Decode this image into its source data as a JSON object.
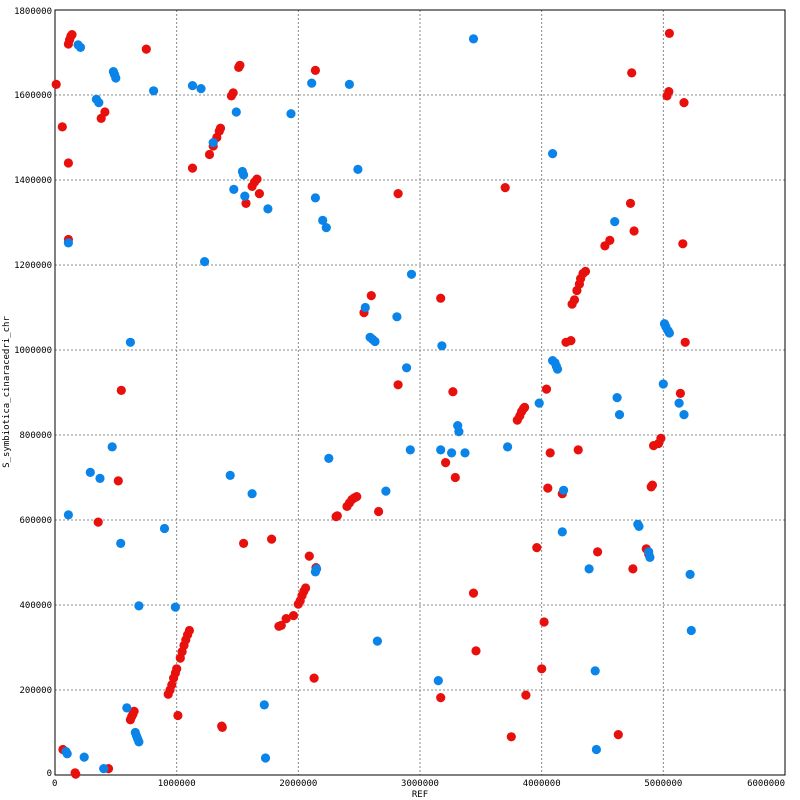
{
  "chart_data": {
    "type": "scatter",
    "title": "",
    "xlabel": "REF",
    "ylabel": "S_symbiotica_cinaracedri_chr",
    "xlim": [
      0,
      6000000
    ],
    "ylim": [
      0,
      1800000
    ],
    "grid": true,
    "x_ticks": [
      "0",
      "1000000",
      "2000000",
      "3000000",
      "4000000",
      "5000000",
      "6000000"
    ],
    "y_ticks": [
      "0",
      "200000",
      "400000",
      "600000",
      "800000",
      "1000000",
      "1200000",
      "1400000",
      "1600000",
      "1800000"
    ],
    "series": [
      {
        "color": "#e8100c",
        "points": [
          [
            10000,
            1625000
          ],
          [
            60000,
            1525000
          ],
          [
            110000,
            1720000
          ],
          [
            120000,
            1730000
          ],
          [
            130000,
            1738000
          ],
          [
            140000,
            1742000
          ],
          [
            110000,
            1440000
          ],
          [
            110000,
            1260000
          ],
          [
            65000,
            60000
          ],
          [
            165000,
            5000
          ],
          [
            170000,
            2000
          ],
          [
            440000,
            15000
          ],
          [
            380000,
            1545000
          ],
          [
            410000,
            1560000
          ],
          [
            355000,
            595000
          ],
          [
            520000,
            692000
          ],
          [
            545000,
            905000
          ],
          [
            750000,
            1708000
          ],
          [
            620000,
            130000
          ],
          [
            630000,
            137000
          ],
          [
            640000,
            143000
          ],
          [
            650000,
            150000
          ],
          [
            930000,
            190000
          ],
          [
            945000,
            200000
          ],
          [
            960000,
            212000
          ],
          [
            975000,
            228000
          ],
          [
            990000,
            240000
          ],
          [
            1000000,
            250000
          ],
          [
            1010000,
            140000
          ],
          [
            1030000,
            275000
          ],
          [
            1045000,
            290000
          ],
          [
            1060000,
            305000
          ],
          [
            1075000,
            318000
          ],
          [
            1090000,
            330000
          ],
          [
            1105000,
            340000
          ],
          [
            1130000,
            1428000
          ],
          [
            1270000,
            1460000
          ],
          [
            1300000,
            1480000
          ],
          [
            1330000,
            1500000
          ],
          [
            1350000,
            1515000
          ],
          [
            1360000,
            1522000
          ],
          [
            1370000,
            115000
          ],
          [
            1375000,
            112000
          ],
          [
            1450000,
            1598000
          ],
          [
            1465000,
            1605000
          ],
          [
            1510000,
            1665000
          ],
          [
            1520000,
            1670000
          ],
          [
            1550000,
            545000
          ],
          [
            1570000,
            1345000
          ],
          [
            1620000,
            1385000
          ],
          [
            1640000,
            1395000
          ],
          [
            1660000,
            1402000
          ],
          [
            1680000,
            1368000
          ],
          [
            1780000,
            555000
          ],
          [
            1840000,
            350000
          ],
          [
            1860000,
            352000
          ],
          [
            1900000,
            368000
          ],
          [
            1960000,
            375000
          ],
          [
            2000000,
            402000
          ],
          [
            2015000,
            410000
          ],
          [
            2030000,
            422000
          ],
          [
            2045000,
            432000
          ],
          [
            2060000,
            440000
          ],
          [
            2090000,
            515000
          ],
          [
            2130000,
            228000
          ],
          [
            2140000,
            1658000
          ],
          [
            2145000,
            488000
          ],
          [
            2310000,
            608000
          ],
          [
            2320000,
            610000
          ],
          [
            2400000,
            632000
          ],
          [
            2420000,
            640000
          ],
          [
            2440000,
            648000
          ],
          [
            2460000,
            652000
          ],
          [
            2480000,
            655000
          ],
          [
            2540000,
            1088000
          ],
          [
            2600000,
            1128000
          ],
          [
            2660000,
            620000
          ],
          [
            2820000,
            1368000
          ],
          [
            2820000,
            918000
          ],
          [
            3170000,
            1122000
          ],
          [
            3170000,
            182000
          ],
          [
            3210000,
            735000
          ],
          [
            3270000,
            902000
          ],
          [
            3290000,
            700000
          ],
          [
            3440000,
            428000
          ],
          [
            3460000,
            292000
          ],
          [
            3700000,
            1382000
          ],
          [
            3750000,
            90000
          ],
          [
            3800000,
            835000
          ],
          [
            3820000,
            845000
          ],
          [
            3835000,
            855000
          ],
          [
            3850000,
            862000
          ],
          [
            3860000,
            865000
          ],
          [
            3870000,
            188000
          ],
          [
            3960000,
            535000
          ],
          [
            4000000,
            250000
          ],
          [
            4020000,
            360000
          ],
          [
            4040000,
            908000
          ],
          [
            4050000,
            675000
          ],
          [
            4070000,
            758000
          ],
          [
            4170000,
            662000
          ],
          [
            4200000,
            1018000
          ],
          [
            4240000,
            1022000
          ],
          [
            4250000,
            1108000
          ],
          [
            4270000,
            1118000
          ],
          [
            4290000,
            1140000
          ],
          [
            4310000,
            1155000
          ],
          [
            4320000,
            1168000
          ],
          [
            4340000,
            1180000
          ],
          [
            4360000,
            1185000
          ],
          [
            4300000,
            765000
          ],
          [
            4460000,
            525000
          ],
          [
            4520000,
            1245000
          ],
          [
            4560000,
            1258000
          ],
          [
            4630000,
            95000
          ],
          [
            4730000,
            1345000
          ],
          [
            4740000,
            1652000
          ],
          [
            4750000,
            485000
          ],
          [
            4760000,
            1280000
          ],
          [
            4860000,
            532000
          ],
          [
            4880000,
            520000
          ],
          [
            4900000,
            678000
          ],
          [
            4910000,
            682000
          ],
          [
            4920000,
            775000
          ],
          [
            4960000,
            780000
          ],
          [
            4980000,
            792000
          ],
          [
            5030000,
            1598000
          ],
          [
            5045000,
            1608000
          ],
          [
            5050000,
            1745000
          ],
          [
            5140000,
            898000
          ],
          [
            5160000,
            1250000
          ],
          [
            5170000,
            1582000
          ],
          [
            5180000,
            1018000
          ]
        ]
      },
      {
        "color": "#0a84e8",
        "points": [
          [
            90000,
            55000
          ],
          [
            100000,
            50000
          ],
          [
            110000,
            612000
          ],
          [
            110000,
            1252000
          ],
          [
            190000,
            1718000
          ],
          [
            210000,
            1712000
          ],
          [
            240000,
            42000
          ],
          [
            290000,
            712000
          ],
          [
            340000,
            1590000
          ],
          [
            360000,
            1582000
          ],
          [
            370000,
            698000
          ],
          [
            400000,
            15000
          ],
          [
            470000,
            772000
          ],
          [
            480000,
            1655000
          ],
          [
            490000,
            1648000
          ],
          [
            500000,
            1640000
          ],
          [
            540000,
            545000
          ],
          [
            590000,
            158000
          ],
          [
            620000,
            1018000
          ],
          [
            660000,
            100000
          ],
          [
            670000,
            92000
          ],
          [
            680000,
            85000
          ],
          [
            690000,
            78000
          ],
          [
            690000,
            398000
          ],
          [
            810000,
            1610000
          ],
          [
            900000,
            580000
          ],
          [
            990000,
            395000
          ],
          [
            1130000,
            1622000
          ],
          [
            1200000,
            1615000
          ],
          [
            1230000,
            1208000
          ],
          [
            1300000,
            1488000
          ],
          [
            1440000,
            705000
          ],
          [
            1470000,
            1378000
          ],
          [
            1490000,
            1560000
          ],
          [
            1540000,
            1420000
          ],
          [
            1550000,
            1412000
          ],
          [
            1560000,
            1362000
          ],
          [
            1620000,
            662000
          ],
          [
            1720000,
            165000
          ],
          [
            1730000,
            40000
          ],
          [
            1750000,
            1332000
          ],
          [
            1940000,
            1556000
          ],
          [
            2110000,
            1628000
          ],
          [
            2140000,
            1358000
          ],
          [
            2140000,
            478000
          ],
          [
            2150000,
            485000
          ],
          [
            2200000,
            1305000
          ],
          [
            2230000,
            1288000
          ],
          [
            2250000,
            745000
          ],
          [
            2420000,
            1625000
          ],
          [
            2490000,
            1425000
          ],
          [
            2550000,
            1100000
          ],
          [
            2590000,
            1030000
          ],
          [
            2610000,
            1025000
          ],
          [
            2630000,
            1020000
          ],
          [
            2650000,
            315000
          ],
          [
            2720000,
            668000
          ],
          [
            2810000,
            1078000
          ],
          [
            2890000,
            958000
          ],
          [
            2920000,
            765000
          ],
          [
            2930000,
            1178000
          ],
          [
            3150000,
            222000
          ],
          [
            3170000,
            765000
          ],
          [
            3180000,
            1010000
          ],
          [
            3260000,
            758000
          ],
          [
            3310000,
            822000
          ],
          [
            3320000,
            808000
          ],
          [
            3370000,
            758000
          ],
          [
            3440000,
            1732000
          ],
          [
            3720000,
            772000
          ],
          [
            3980000,
            875000
          ],
          [
            4090000,
            1462000
          ],
          [
            4090000,
            975000
          ],
          [
            4110000,
            970000
          ],
          [
            4120000,
            962000
          ],
          [
            4130000,
            955000
          ],
          [
            4180000,
            670000
          ],
          [
            4170000,
            572000
          ],
          [
            4390000,
            485000
          ],
          [
            4440000,
            245000
          ],
          [
            4450000,
            60000
          ],
          [
            4600000,
            1302000
          ],
          [
            4620000,
            888000
          ],
          [
            4640000,
            848000
          ],
          [
            4790000,
            590000
          ],
          [
            4800000,
            585000
          ],
          [
            4880000,
            525000
          ],
          [
            4890000,
            512000
          ],
          [
            5000000,
            920000
          ],
          [
            5010000,
            1062000
          ],
          [
            5020000,
            1055000
          ],
          [
            5040000,
            1045000
          ],
          [
            5050000,
            1040000
          ],
          [
            5130000,
            875000
          ],
          [
            5170000,
            848000
          ],
          [
            5220000,
            472000
          ],
          [
            5230000,
            340000
          ]
        ]
      }
    ]
  }
}
